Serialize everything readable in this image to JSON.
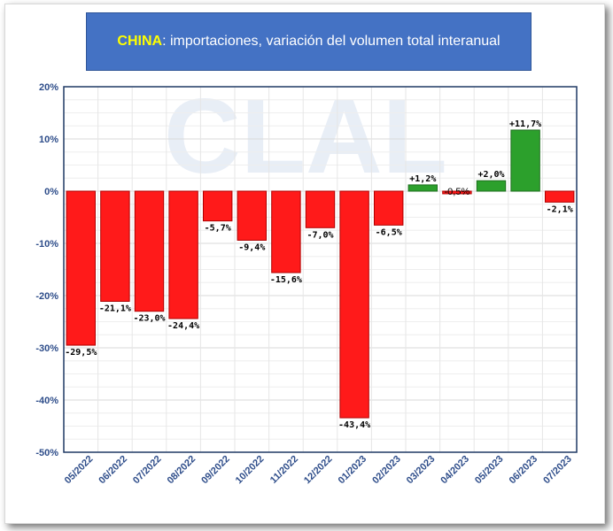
{
  "header": {
    "title_highlight": "CHINA",
    "title_rest": ": importaciones, variación del volumen total interanual"
  },
  "watermark": "CLAL",
  "colors": {
    "negative": "#ff1a1a",
    "positive": "#2ca02c",
    "title_bg": "#4472c4",
    "axis_text": "#2e4d8a"
  },
  "chart_data": {
    "type": "bar",
    "title": "CHINA: importaciones, variación del volumen total interanual",
    "xlabel": "",
    "ylabel": "",
    "ylim": [
      -50,
      20
    ],
    "y_ticks": [
      "20%",
      "10%",
      "0%",
      "-10%",
      "-20%",
      "-30%",
      "-40%",
      "-50%"
    ],
    "y_tick_values": [
      20,
      10,
      0,
      -10,
      -20,
      -30,
      -40,
      -50
    ],
    "grid": true,
    "categories": [
      "05/2022",
      "06/2022",
      "07/2022",
      "08/2022",
      "09/2022",
      "10/2022",
      "11/2022",
      "12/2022",
      "01/2023",
      "02/2023",
      "03/2023",
      "04/2023",
      "05/2023",
      "06/2023",
      "07/2023"
    ],
    "values": [
      -29.5,
      -21.1,
      -23.0,
      -24.4,
      -5.7,
      -9.4,
      -15.6,
      -7.0,
      -43.4,
      -6.5,
      1.2,
      -0.5,
      2.0,
      11.7,
      -2.1
    ],
    "labels": [
      "-29,5%",
      "-21,1%",
      "-23,0%",
      "-24,4%",
      "-5,7%",
      "-9,4%",
      "-15,6%",
      "-7,0%",
      "-43,4%",
      "-6,5%",
      "+1,2%",
      "-0,5%",
      "+2,0%",
      "+11,7%",
      "-2,1%"
    ]
  }
}
